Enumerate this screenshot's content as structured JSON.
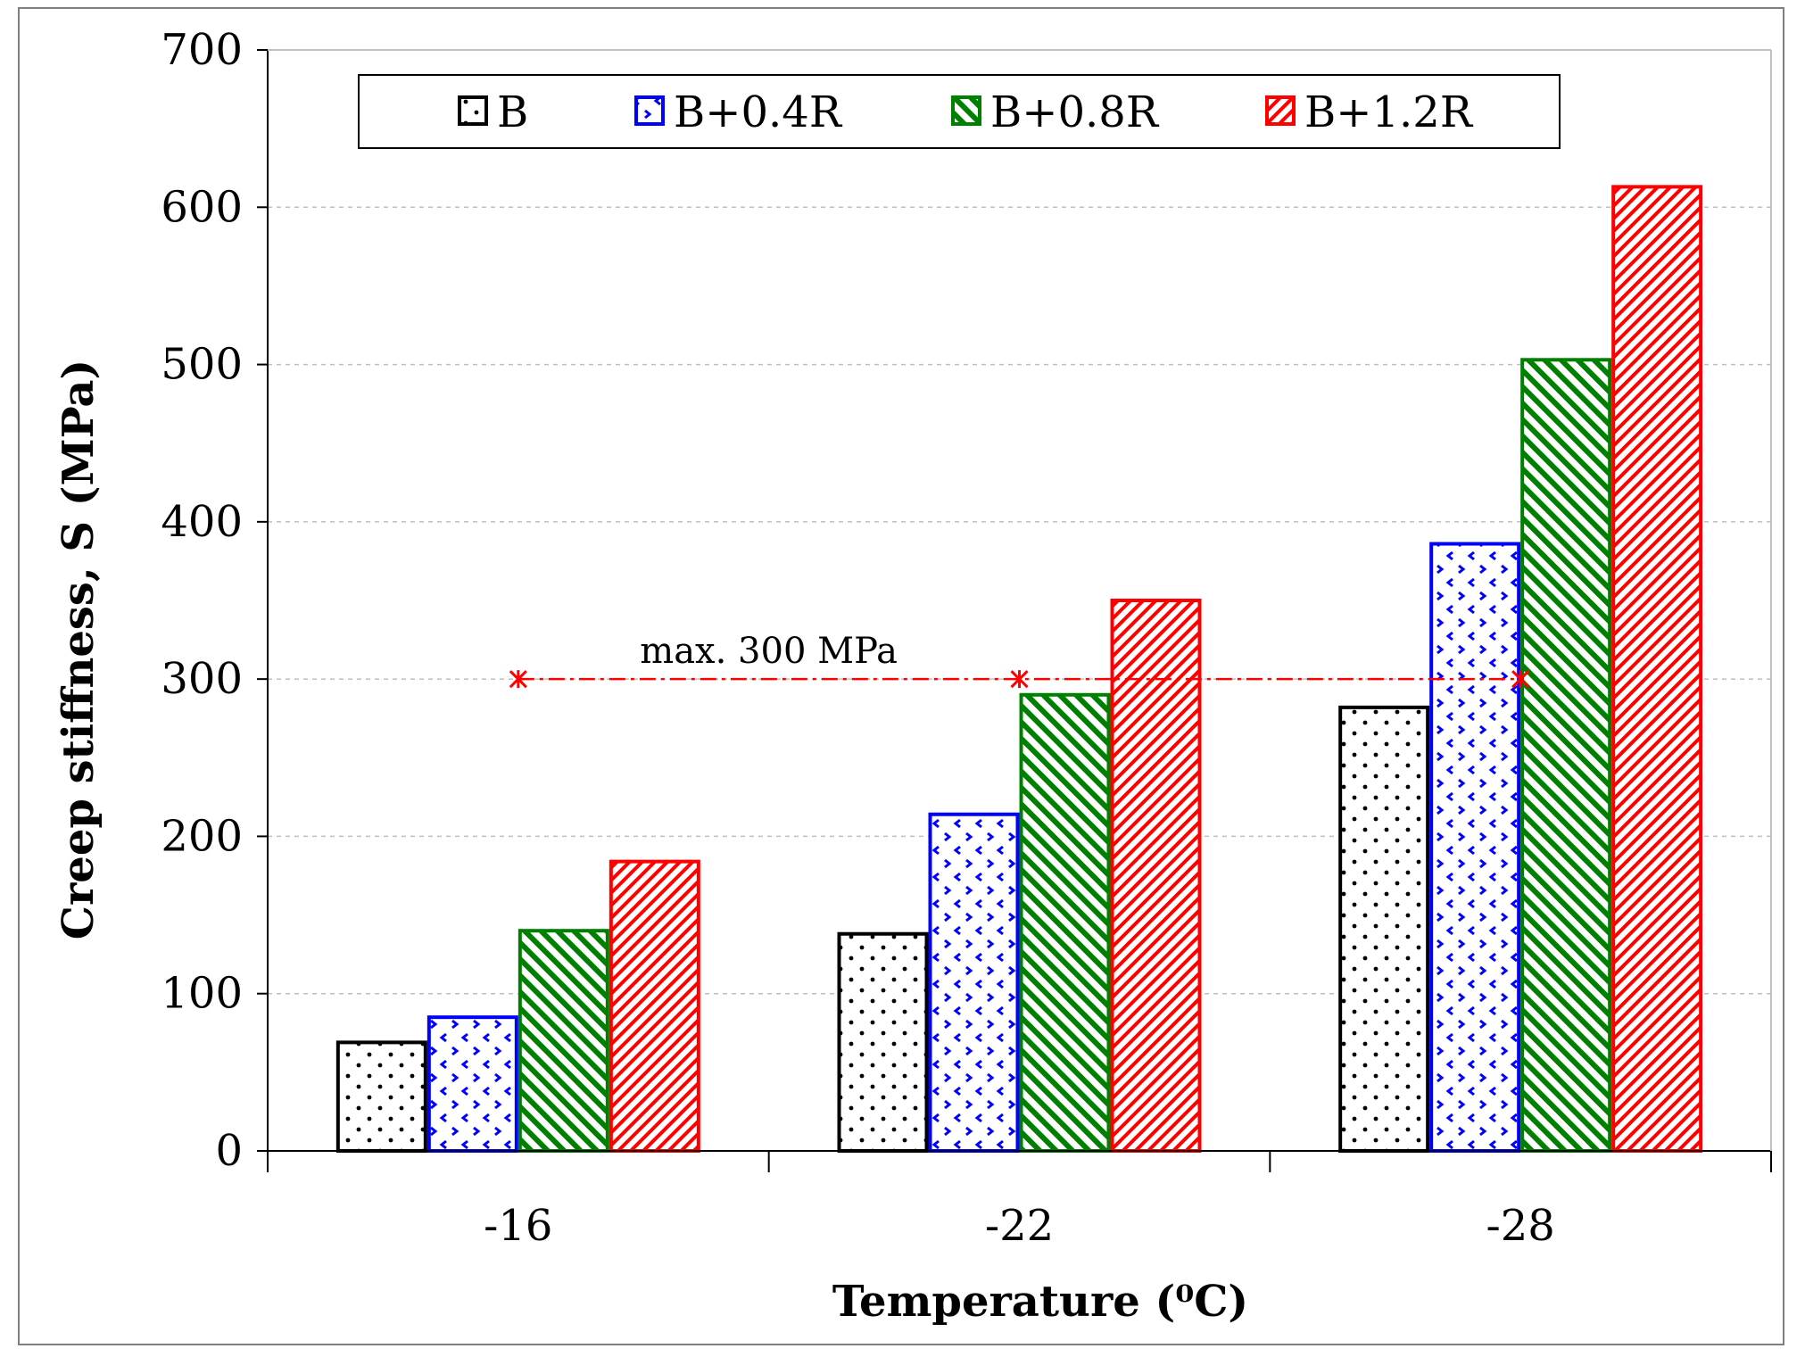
{
  "chart_data": {
    "type": "bar",
    "title": "",
    "xlabel": "Temperature (⁰C)",
    "ylabel": "Creep stiffness, S (MPa)",
    "ylim": [
      0,
      700
    ],
    "yticks": [
      "0",
      "100",
      "200",
      "300",
      "400",
      "500",
      "600",
      "700"
    ],
    "grid": true,
    "legend_position": "top",
    "categories": [
      "-16",
      "-22",
      "-28"
    ],
    "series": [
      {
        "name": "B",
        "values": [
          69,
          138,
          282
        ],
        "color": "#000000",
        "pattern": "dots"
      },
      {
        "name": "B+0.4R",
        "values": [
          85,
          214,
          386
        ],
        "color": "#0000ff",
        "pattern": "arrows"
      },
      {
        "name": "B+0.8R",
        "values": [
          140,
          290,
          503
        ],
        "color": "#008000",
        "pattern": "diagonal"
      },
      {
        "name": "B+1.2R",
        "values": [
          184,
          350,
          613
        ],
        "color": "#ff0000",
        "pattern": "dense-diagonal"
      }
    ],
    "annotation": {
      "text": "max. 300 MPa",
      "value": 300,
      "color": "#ff0000"
    }
  }
}
